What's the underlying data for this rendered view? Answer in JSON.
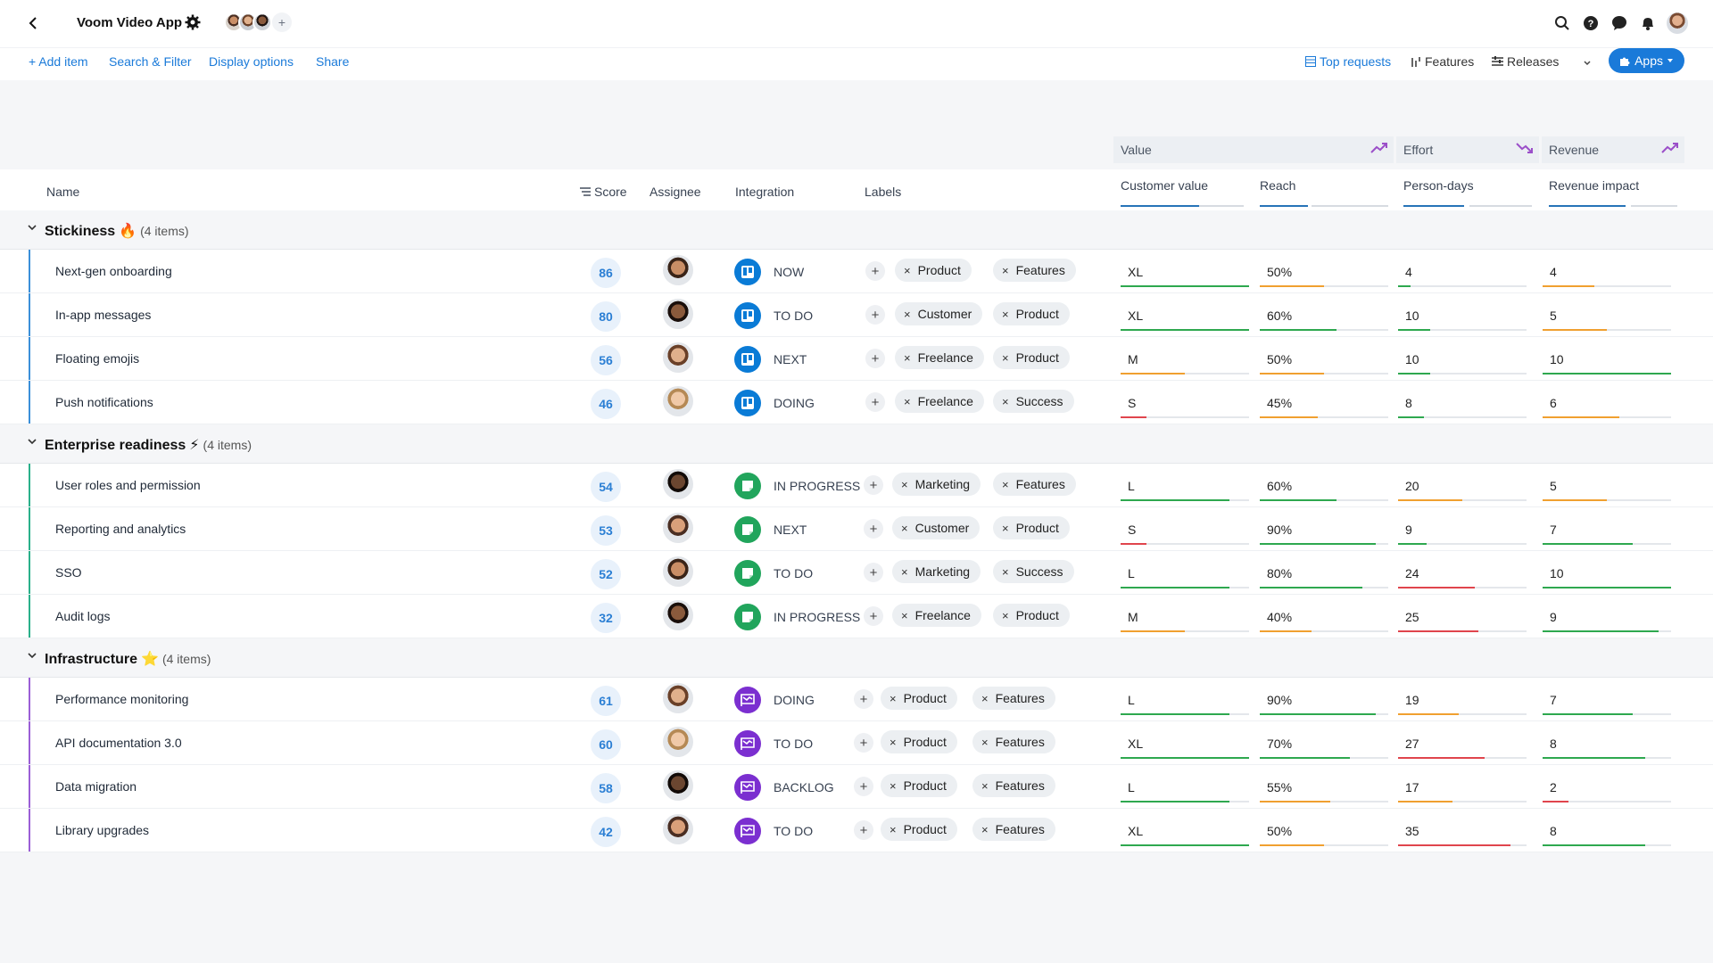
{
  "header": {
    "back_icon": "chevron-left-icon",
    "app_title": "Voom Video App",
    "settings_icon": "gear-icon",
    "team_add": "+",
    "icons": [
      "search-icon",
      "help-icon",
      "chat-icon",
      "bell-icon"
    ]
  },
  "toolbar": {
    "add_item": "+ Add item",
    "search_filter": "Search & Filter",
    "display_options": "Display options",
    "share": "Share",
    "top_requests": "Top requests",
    "features": "Features",
    "releases": "Releases",
    "apps": "Apps"
  },
  "columns": {
    "name": "Name",
    "score": "Score",
    "assignee": "Assignee",
    "integration": "Integration",
    "labels": "Labels",
    "value_group": "Value",
    "effort_group": "Effort",
    "revenue_group": "Revenue",
    "customer_value": "Customer value",
    "reach": "Reach",
    "person_days": "Person-days",
    "revenue_impact": "Revenue impact"
  },
  "colors": {
    "accent": "#1a7ad9",
    "trello_blue": "#0a7bd6",
    "asana_green": "#21a55c",
    "roadmap_purple": "#7b2fd0",
    "good": "#2ea84f",
    "warn": "#f0a030",
    "bad": "#e0454d"
  },
  "groups": [
    {
      "name": "Stickiness",
      "emoji": "🔥",
      "count": "(4 items)",
      "bar_color": "#3b8fd9",
      "items": [
        {
          "name": "Next-gen onboarding",
          "score": "86",
          "status": "NOW",
          "integration": "trello",
          "labels": [
            "Product",
            "Features"
          ],
          "customer_value": "XL",
          "reach": "50%",
          "person_days": "4",
          "revenue_impact": "4"
        },
        {
          "name": "In-app messages",
          "score": "80",
          "status": "TO DO",
          "integration": "trello",
          "labels": [
            "Customer",
            "Product"
          ],
          "customer_value": "XL",
          "reach": "60%",
          "person_days": "10",
          "revenue_impact": "5"
        },
        {
          "name": "Floating emojis",
          "score": "56",
          "status": "NEXT",
          "integration": "trello",
          "labels": [
            "Freelance",
            "Product"
          ],
          "customer_value": "M",
          "reach": "50%",
          "person_days": "10",
          "revenue_impact": "10"
        },
        {
          "name": "Push notifications",
          "score": "46",
          "status": "DOING",
          "integration": "trello",
          "labels": [
            "Freelance",
            "Success"
          ],
          "customer_value": "S",
          "reach": "45%",
          "person_days": "8",
          "revenue_impact": "6"
        }
      ]
    },
    {
      "name": "Enterprise readiness",
      "emoji": "⚡",
      "count": "(4 items)",
      "bar_color": "#2ab08a",
      "items": [
        {
          "name": "User roles and permission",
          "score": "54",
          "status": "IN PROGRESS",
          "integration": "asana",
          "labels": [
            "Marketing",
            "Features"
          ],
          "customer_value": "L",
          "reach": "60%",
          "person_days": "20",
          "revenue_impact": "5"
        },
        {
          "name": "Reporting and analytics",
          "score": "53",
          "status": "NEXT",
          "integration": "asana",
          "labels": [
            "Customer",
            "Product"
          ],
          "customer_value": "S",
          "reach": "90%",
          "person_days": "9",
          "revenue_impact": "7"
        },
        {
          "name": "SSO",
          "score": "52",
          "status": "TO DO",
          "integration": "asana",
          "labels": [
            "Marketing",
            "Success"
          ],
          "customer_value": "L",
          "reach": "80%",
          "person_days": "24",
          "revenue_impact": "10"
        },
        {
          "name": "Audit logs",
          "score": "32",
          "status": "IN PROGRESS",
          "integration": "asana",
          "labels": [
            "Freelance",
            "Product"
          ],
          "customer_value": "M",
          "reach": "40%",
          "person_days": "25",
          "revenue_impact": "9"
        }
      ]
    },
    {
      "name": "Infrastructure",
      "emoji": "⭐",
      "count": "(4 items)",
      "bar_color": "#9b5fd6",
      "items": [
        {
          "name": "Performance monitoring",
          "score": "61",
          "status": "DOING",
          "integration": "roadmap",
          "labels": [
            "Product",
            "Features"
          ],
          "customer_value": "L",
          "reach": "90%",
          "person_days": "19",
          "revenue_impact": "7"
        },
        {
          "name": "API documentation 3.0",
          "score": "60",
          "status": "TO DO",
          "integration": "roadmap",
          "labels": [
            "Product",
            "Features"
          ],
          "customer_value": "XL",
          "reach": "70%",
          "person_days": "27",
          "revenue_impact": "8"
        },
        {
          "name": "Data migration",
          "score": "58",
          "status": "BACKLOG",
          "integration": "roadmap",
          "labels": [
            "Product",
            "Features"
          ],
          "customer_value": "L",
          "reach": "55%",
          "person_days": "17",
          "revenue_impact": "2"
        },
        {
          "name": "Library upgrades",
          "score": "42",
          "status": "TO DO",
          "integration": "roadmap",
          "labels": [
            "Product",
            "Features"
          ],
          "customer_value": "XL",
          "reach": "50%",
          "person_days": "35",
          "revenue_impact": "8"
        }
      ]
    }
  ]
}
